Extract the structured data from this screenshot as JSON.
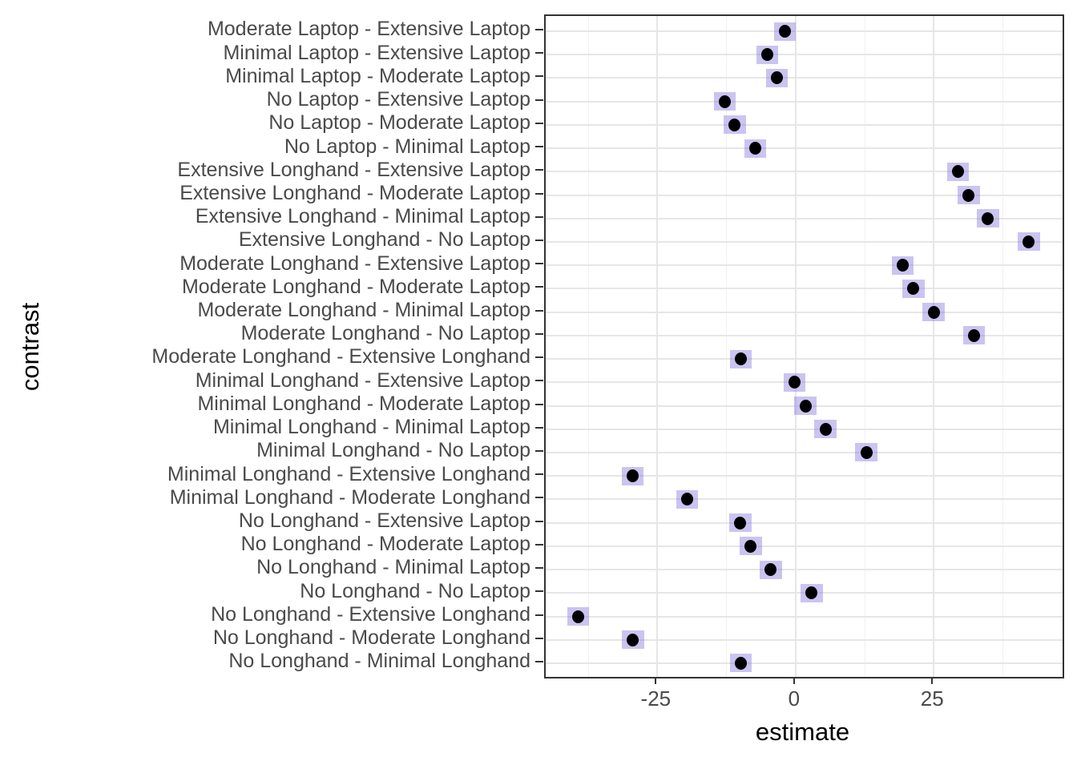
{
  "chart_data": {
    "type": "scatter",
    "orientation": "horizontal-dotplot",
    "title": "",
    "xlabel": "estimate",
    "ylabel": "contrast",
    "xlim": [
      -45.2,
      48.3
    ],
    "x_major_ticks": [
      -25,
      0,
      25
    ],
    "x_major_tick_labels": [
      "-25",
      "0",
      "25"
    ],
    "x_minor_ticks": [
      -37.5,
      -12.5,
      12.5,
      37.5
    ],
    "grid": "on",
    "legend": "none",
    "interval_halfwidth": 2.0,
    "categories": [
      "Moderate Laptop - Extensive Laptop",
      "Minimal Laptop - Extensive Laptop",
      "Minimal Laptop - Moderate Laptop",
      "No Laptop - Extensive Laptop",
      "No Laptop - Moderate Laptop",
      "No Laptop - Minimal Laptop",
      "Extensive Longhand - Extensive Laptop",
      "Extensive Longhand - Moderate Laptop",
      "Extensive Longhand - Minimal Laptop",
      "Extensive Longhand - No Laptop",
      "Moderate Longhand - Extensive Laptop",
      "Moderate Longhand - Moderate Laptop",
      "Moderate Longhand - Minimal Laptop",
      "Moderate Longhand - No Laptop",
      "Moderate Longhand - Extensive Longhand",
      "Minimal Longhand - Extensive Laptop",
      "Minimal Longhand - Moderate Laptop",
      "Minimal Longhand - Minimal Laptop",
      "Minimal Longhand - No Laptop",
      "Minimal Longhand - Extensive Longhand",
      "Minimal Longhand - Moderate Longhand",
      "No Longhand - Extensive Laptop",
      "No Longhand - Moderate Laptop",
      "No Longhand - Minimal Laptop",
      "No Longhand - No Laptop",
      "No Longhand - Extensive Longhand",
      "No Longhand - Moderate Longhand",
      "No Longhand - Minimal Longhand"
    ],
    "values": [
      -1.9,
      -5.1,
      -3.4,
      -12.8,
      -11.0,
      -7.3,
      29.4,
      31.3,
      34.8,
      42.2,
      19.4,
      21.3,
      25.0,
      32.3,
      -9.9,
      -0.2,
      1.8,
      5.4,
      12.8,
      -29.5,
      -19.6,
      -10.0,
      -8.1,
      -4.5,
      2.9,
      -39.3,
      -29.4,
      -9.9
    ],
    "colors": {
      "interval_fill": "rgba(128,115,221,0.42)",
      "point": "#000000",
      "grid_major": "#e6e6e6",
      "grid_minor": "#f1f1f1",
      "panel_border": "#333333",
      "axis_text": "#4a4a4a",
      "axis_title": "#000000",
      "background": "#ffffff"
    }
  }
}
